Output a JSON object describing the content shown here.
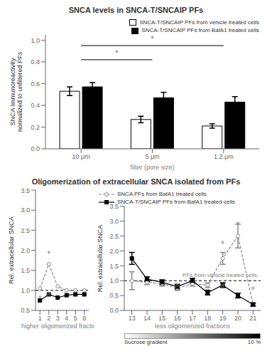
{
  "chart_data": [
    {
      "type": "bar",
      "title": "SNCA levels in SNCA-T/SNCAIP PFs",
      "categories": [
        "10 μm",
        "5 μm",
        "1.2 μm"
      ],
      "series": [
        {
          "name": "SNCA-T/SNCAIP PFs from vehicle treated cells",
          "color": "#ffffff",
          "values": [
            0.53,
            0.27,
            0.21
          ],
          "errors": [
            0.04,
            0.03,
            0.02
          ]
        },
        {
          "name": "SNCA-T/SNCAIP PFs from BafA1 treated cells",
          "color": "#000000",
          "values": [
            0.57,
            0.47,
            0.43
          ],
          "errors": [
            0.04,
            0.05,
            0.05
          ]
        }
      ],
      "x_label": "filter (pore size)",
      "y_label": "SNCA Immunoreactivity\nnormalized to unfiltered PFs",
      "ylim": [
        0,
        1.05
      ],
      "yticks": [
        {
          "value": 0,
          "label": "0.0"
        },
        0.2,
        0.4,
        0.6,
        0.8,
        {
          "value": 1,
          "label": "1.0"
        }
      ],
      "legend": "upper right",
      "annotations": [
        {
          "text": "*",
          "from": "10 μm",
          "to": "1.2 μm",
          "y": 0.95
        },
        {
          "text": "*",
          "from": "10 μm",
          "to": "5 μm",
          "y": 0.82
        }
      ]
    },
    {
      "type": "line",
      "title": "Oligomerization of extracellular SNCA isolated from PFs",
      "x": [
        1,
        2,
        3,
        4,
        5,
        6
      ],
      "series": [
        {
          "name": "SNCA PFs from BafA1 treated cells",
          "color": "#888888",
          "marker": "circle",
          "line_style": "dashed",
          "values": [
            1.05,
            1.65,
            1.1,
            1.0,
            1.0,
            1.0
          ]
        },
        {
          "name": "SNCA-T/SNCAIP PFs from BafA1 treated cells",
          "color": "#000000",
          "marker": "square",
          "line_style": "solid",
          "values": [
            0.75,
            0.9,
            0.82,
            0.88,
            0.9,
            0.9
          ]
        }
      ],
      "x_label": "higher oligomerized fractions",
      "y_label": "Rel. extracellular SNCA",
      "xlim": [
        0.5,
        6.5
      ],
      "xticks": [
        1,
        2,
        3,
        4,
        5,
        6
      ],
      "ylim": [
        0.5,
        3.5
      ],
      "yticks": [
        0.5,
        {
          "value": 1,
          "label": "1.0"
        },
        1.5,
        {
          "value": 2,
          "label": "2.0"
        },
        2.5,
        {
          "value": 3,
          "label": "3.0"
        },
        3.5
      ],
      "reference_line": {
        "y": 1.0
      },
      "annotations": [
        {
          "text": "*",
          "x": 2,
          "y": 1.75
        },
        {
          "text": "#",
          "x": 1,
          "y": 0.68
        },
        {
          "text": "#",
          "x": 2,
          "y": 0.76
        }
      ]
    },
    {
      "type": "line",
      "x": [
        13,
        14,
        15,
        16,
        17,
        18,
        19,
        20,
        21
      ],
      "series": [
        {
          "name": "SNCA PFs from BafA1 treated cells",
          "color": "#888888",
          "marker": "circle",
          "line_style": "dashed",
          "values": [
            1.0,
            0.95,
            0.9,
            0.75,
            0.9,
            0.85,
            1.75,
            2.5,
            0.2
          ],
          "errors": [
            0.3,
            0.08,
            0.08,
            0.08,
            0.08,
            0.08,
            0.2,
            0.4,
            0.05
          ]
        },
        {
          "name": "SNCA-T/SNCAIP PFs from BafA1 treated cells",
          "color": "#000000",
          "marker": "square",
          "line_style": "solid",
          "values": [
            1.75,
            1.05,
            0.95,
            0.8,
            1.0,
            0.6,
            0.85,
            0.5,
            0.2
          ],
          "errors": [
            0.2,
            0.08,
            0.08,
            0.08,
            0.08,
            0.08,
            0.08,
            0.08,
            0.05
          ]
        }
      ],
      "x_label": "less oligomerized fractions",
      "y_label": "Rel. extracellular SNCA",
      "xlim": [
        12.5,
        21.5
      ],
      "xticks": [
        13,
        14,
        15,
        16,
        17,
        18,
        19,
        20,
        21
      ],
      "ylim": [
        0,
        3.5
      ],
      "yticks": [
        {
          "value": 0,
          "label": "0.0"
        },
        0.5,
        {
          "value": 1,
          "label": "1.0"
        },
        1.5,
        {
          "value": 2,
          "label": "2.0"
        },
        2.5,
        {
          "value": 3,
          "label": "3.0"
        },
        3.5
      ],
      "reference_line": {
        "y": 1.0,
        "label": "PFs from vehicle treated cells"
      },
      "legend": "upper left",
      "gradient_labels": [
        "Sucrose gradient",
        "10 %"
      ],
      "annotations": [
        {
          "text": "*",
          "x": 19,
          "y": 2.0
        },
        {
          "text": "*",
          "x": 20,
          "y": 2.65
        },
        {
          "text": "#",
          "x": 16,
          "y": 0.64
        },
        {
          "text": "#",
          "x": 19,
          "y": 0.64
        },
        {
          "text": "#",
          "x": 21,
          "y": 0.55
        }
      ]
    }
  ]
}
